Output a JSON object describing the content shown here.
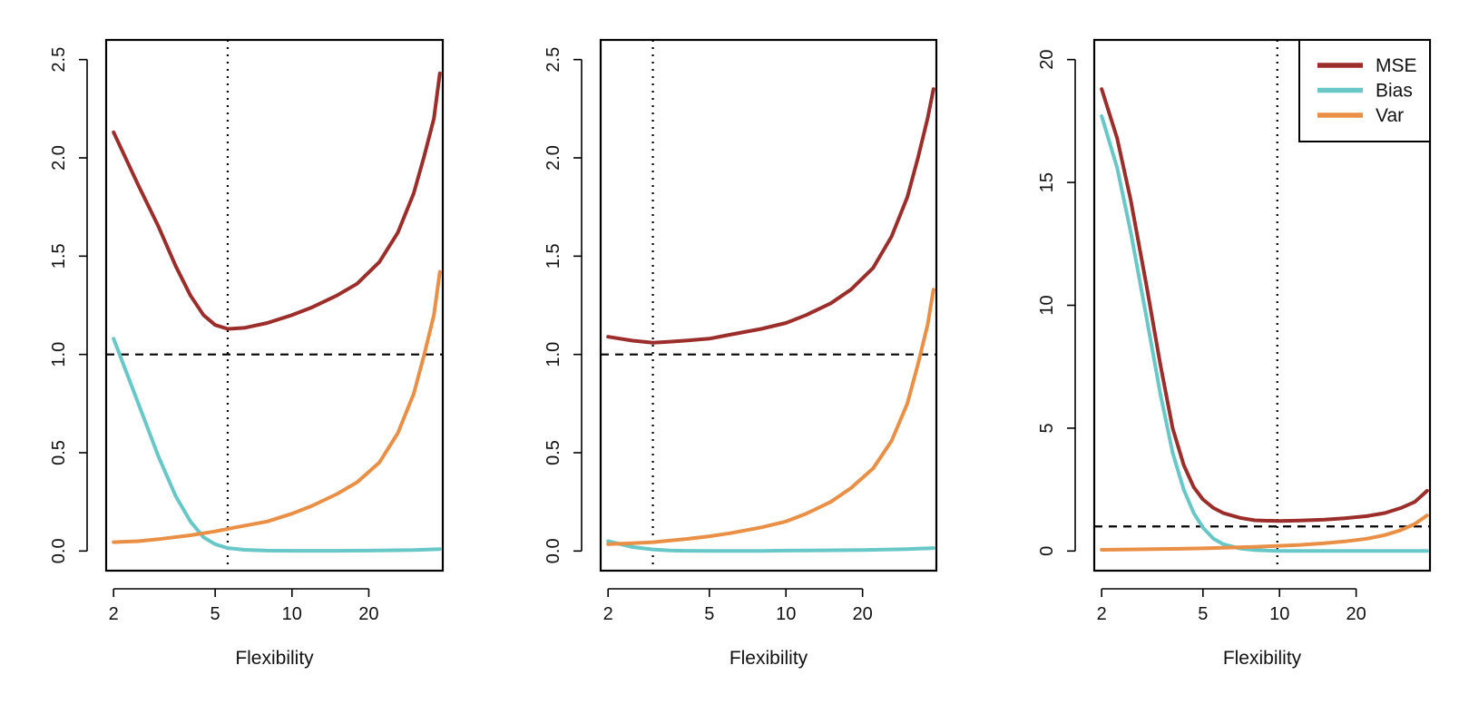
{
  "chart_data": [
    {
      "type": "line",
      "xlabel": "Flexibility",
      "ylabel": "",
      "x_scale": "log",
      "xlim": [
        1.87,
        39
      ],
      "ylim": [
        -0.1,
        2.6
      ],
      "x_ticks": [
        2,
        5,
        10,
        20
      ],
      "y_ticks": [
        "0.0",
        "0.5",
        "1.0",
        "1.5",
        "2.0",
        "2.5"
      ],
      "hline": 1.0,
      "vline": 5.6,
      "grid": false,
      "legend": null,
      "series": [
        {
          "name": "MSE",
          "color": "#9b2d2a",
          "x": [
            2,
            2.5,
            3,
            3.5,
            4,
            4.5,
            5,
            5.6,
            6.5,
            8,
            10,
            12,
            15,
            18,
            22,
            26,
            30,
            33,
            36,
            38
          ],
          "values": [
            2.13,
            1.86,
            1.65,
            1.45,
            1.3,
            1.2,
            1.15,
            1.13,
            1.135,
            1.16,
            1.2,
            1.24,
            1.3,
            1.36,
            1.47,
            1.62,
            1.82,
            2.01,
            2.2,
            2.43
          ]
        },
        {
          "name": "Bias",
          "color": "#67c8c7",
          "x": [
            2,
            2.5,
            3,
            3.5,
            4,
            4.5,
            5,
            5.6,
            6.5,
            8,
            10,
            15,
            20,
            30,
            38
          ],
          "values": [
            1.08,
            0.75,
            0.48,
            0.28,
            0.15,
            0.07,
            0.035,
            0.015,
            0.006,
            0.002,
            0.001,
            0.001,
            0.002,
            0.005,
            0.01
          ]
        },
        {
          "name": "Var",
          "color": "#e98f46",
          "x": [
            2,
            2.5,
            3,
            4,
            5,
            6,
            8,
            10,
            12,
            15,
            18,
            22,
            26,
            30,
            33,
            36,
            38
          ],
          "values": [
            0.045,
            0.05,
            0.06,
            0.08,
            0.1,
            0.12,
            0.15,
            0.19,
            0.23,
            0.29,
            0.35,
            0.45,
            0.6,
            0.8,
            1.0,
            1.2,
            1.42
          ]
        }
      ]
    },
    {
      "type": "line",
      "xlabel": "Flexibility",
      "ylabel": "",
      "x_scale": "log",
      "xlim": [
        1.87,
        39
      ],
      "ylim": [
        -0.1,
        2.6
      ],
      "x_ticks": [
        2,
        5,
        10,
        20
      ],
      "y_ticks": [
        "0.0",
        "0.5",
        "1.0",
        "1.5",
        "2.0",
        "2.5"
      ],
      "hline": 1.0,
      "vline": 3.0,
      "grid": false,
      "legend": null,
      "series": [
        {
          "name": "MSE",
          "color": "#9b2d2a",
          "x": [
            2,
            2.5,
            3,
            3.5,
            4,
            5,
            6,
            8,
            10,
            12,
            15,
            18,
            22,
            26,
            30,
            33,
            36,
            38
          ],
          "values": [
            1.09,
            1.07,
            1.06,
            1.065,
            1.07,
            1.08,
            1.1,
            1.13,
            1.16,
            1.2,
            1.26,
            1.33,
            1.44,
            1.6,
            1.8,
            2.0,
            2.2,
            2.35
          ]
        },
        {
          "name": "Bias",
          "color": "#67c8c7",
          "x": [
            2,
            2.5,
            3,
            3.5,
            4,
            5,
            8,
            10,
            20,
            30,
            38
          ],
          "values": [
            0.05,
            0.02,
            0.008,
            0.003,
            0.001,
            0.0,
            0.0,
            0.002,
            0.005,
            0.01,
            0.015
          ]
        },
        {
          "name": "Var",
          "color": "#e98f46",
          "x": [
            2,
            2.5,
            3,
            4,
            5,
            6,
            8,
            10,
            12,
            15,
            18,
            22,
            26,
            30,
            33,
            36,
            38
          ],
          "values": [
            0.035,
            0.04,
            0.045,
            0.06,
            0.075,
            0.09,
            0.12,
            0.15,
            0.19,
            0.25,
            0.32,
            0.42,
            0.56,
            0.75,
            0.95,
            1.15,
            1.33
          ]
        }
      ]
    },
    {
      "type": "line",
      "xlabel": "Flexibility",
      "ylabel": "",
      "x_scale": "log",
      "xlim": [
        1.87,
        39
      ],
      "ylim": [
        -0.8,
        20.8
      ],
      "x_ticks": [
        2,
        5,
        10,
        20
      ],
      "y_ticks": [
        "0",
        "5",
        "10",
        "15",
        "20"
      ],
      "hline": 1.0,
      "vline": 9.8,
      "grid": false,
      "legend": {
        "position": "top-right",
        "entries": [
          {
            "label": "MSE",
            "color": "#9b2d2a"
          },
          {
            "label": "Bias",
            "color": "#67c8c7"
          },
          {
            "label": "Var",
            "color": "#e98f46"
          }
        ]
      },
      "series": [
        {
          "name": "MSE",
          "color": "#9b2d2a",
          "x": [
            2,
            2.3,
            2.6,
            3,
            3.4,
            3.8,
            4.2,
            4.6,
            5,
            5.5,
            6,
            7,
            8,
            10,
            12,
            15,
            18,
            22,
            26,
            30,
            34,
            38
          ],
          "values": [
            18.8,
            16.8,
            14.3,
            10.8,
            7.6,
            5.0,
            3.5,
            2.6,
            2.1,
            1.75,
            1.55,
            1.35,
            1.25,
            1.22,
            1.24,
            1.28,
            1.33,
            1.42,
            1.55,
            1.75,
            2.0,
            2.45
          ]
        },
        {
          "name": "Bias",
          "color": "#67c8c7",
          "x": [
            2,
            2.3,
            2.6,
            3,
            3.4,
            3.8,
            4.2,
            4.6,
            5,
            5.5,
            6,
            7,
            8,
            9,
            10,
            12,
            15,
            20,
            30,
            38
          ],
          "values": [
            17.7,
            15.6,
            13.0,
            9.5,
            6.4,
            4.0,
            2.5,
            1.55,
            0.95,
            0.5,
            0.28,
            0.1,
            0.04,
            0.015,
            0.005,
            0.0,
            0.0,
            0.0,
            0.0,
            0.0
          ]
        },
        {
          "name": "Var",
          "color": "#e98f46",
          "x": [
            2,
            3,
            4,
            5,
            6,
            8,
            10,
            12,
            15,
            18,
            22,
            26,
            30,
            34,
            38
          ],
          "values": [
            0.05,
            0.07,
            0.09,
            0.11,
            0.13,
            0.17,
            0.21,
            0.25,
            0.32,
            0.39,
            0.5,
            0.65,
            0.85,
            1.1,
            1.45
          ]
        }
      ]
    }
  ]
}
